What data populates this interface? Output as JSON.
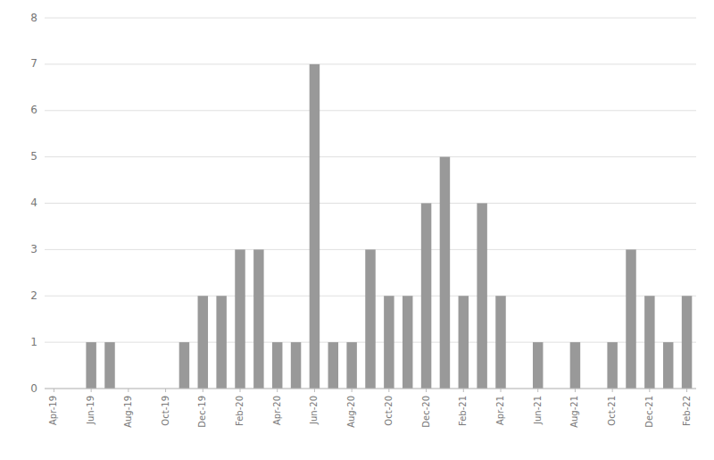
{
  "chart_data": {
    "type": "bar",
    "categories": [
      "Apr-19",
      null,
      "Jun-19",
      null,
      "Aug-19",
      null,
      "Oct-19",
      null,
      "Dec-19",
      null,
      "Feb-20",
      null,
      "Apr-20",
      null,
      "Jun-20",
      null,
      "Aug-20",
      null,
      "Oct-20",
      null,
      "Dec-20",
      null,
      "Feb-21",
      null,
      "Apr-21",
      null,
      "Jun-21",
      null,
      "Aug-21",
      null,
      "Oct-21",
      null,
      "Dec-21",
      null,
      "Feb-22"
    ],
    "values": [
      0,
      0,
      1,
      1,
      0,
      0,
      0,
      1,
      2,
      2,
      3,
      3,
      1,
      1,
      7,
      1,
      1,
      3,
      2,
      2,
      4,
      5,
      2,
      4,
      2,
      0,
      1,
      0,
      1,
      0,
      1,
      3,
      2,
      1,
      2
    ],
    "color": "#999999",
    "ylim": [
      0,
      8
    ],
    "yticks": [
      0,
      1,
      2,
      3,
      4,
      5,
      6,
      7,
      8
    ],
    "grid": true
  }
}
